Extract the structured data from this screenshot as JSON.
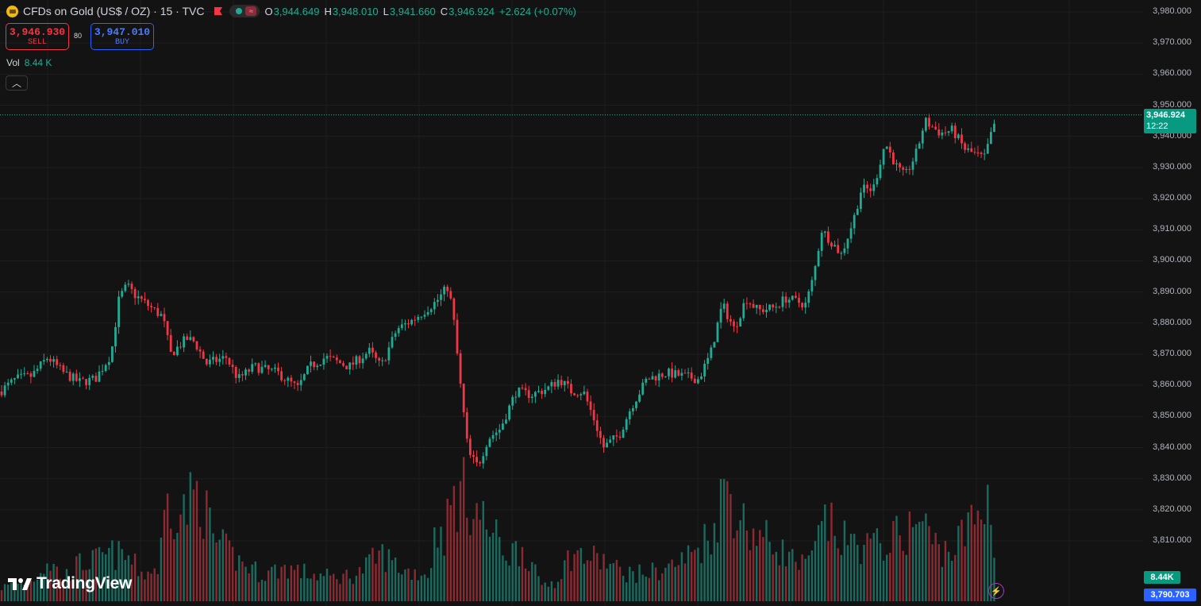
{
  "legend": {
    "symbol_title": "CFDs on Gold (US$ / OZ) · 15 · TVC",
    "open_label": "O",
    "open": "3,944.649",
    "high_label": "H",
    "high": "3,948.010",
    "low_label": "L",
    "low": "3,941.660",
    "close_label": "C",
    "close": "3,946.924",
    "change": "+2.624 (+0.07%)"
  },
  "trade": {
    "sell_price": "3,946.930",
    "sell_label": "SELL",
    "spread": "80",
    "buy_price": "3,947.010",
    "buy_label": "BUY"
  },
  "volume_legend": {
    "label": "Vol",
    "value": "8.44 K"
  },
  "price_axis": {
    "ticks": [
      "3,980.000",
      "3,970.000",
      "3,960.000",
      "3,950.000",
      "3,940.000",
      "3,930.000",
      "3,920.000",
      "3,910.000",
      "3,900.000",
      "3,890.000",
      "3,880.000",
      "3,870.000",
      "3,860.000",
      "3,850.000",
      "3,840.000",
      "3,830.000",
      "3,820.000",
      "3,810.000"
    ]
  },
  "last_price": {
    "price": "3,946.924",
    "countdown": "12:22"
  },
  "volume_tag": "8.44K",
  "axis_bottom_tag": "3,790.703",
  "brand": "TradingView",
  "icons": [
    "gold-symbol-icon",
    "flag-icon",
    "market-open-dot-icon",
    "wave-icon",
    "chevron-up-icon",
    "tradingview-logo-icon",
    "lightning-icon"
  ],
  "colors": {
    "up": "#22ab94",
    "down": "#f23645",
    "background": "#131313",
    "buy": "#2962ff"
  },
  "chart_data": {
    "type": "candlestick",
    "series_name": "CFDs on Gold (US$ / OZ)",
    "interval": "15",
    "ylim": [
      3790,
      3985
    ],
    "grid": true,
    "anchor_path": [
      [
        0,
        3858
      ],
      [
        20,
        3862
      ],
      [
        40,
        3863
      ],
      [
        60,
        3869
      ],
      [
        80,
        3864
      ],
      [
        100,
        3861
      ],
      [
        120,
        3862
      ],
      [
        140,
        3870
      ],
      [
        150,
        3888
      ],
      [
        160,
        3892
      ],
      [
        170,
        3889
      ],
      [
        195,
        3884
      ],
      [
        205,
        3882
      ],
      [
        215,
        3870
      ],
      [
        235,
        3875
      ],
      [
        245,
        3874
      ],
      [
        260,
        3867
      ],
      [
        285,
        3869
      ],
      [
        300,
        3862
      ],
      [
        320,
        3866
      ],
      [
        350,
        3864
      ],
      [
        375,
        3859
      ],
      [
        390,
        3866
      ],
      [
        410,
        3869
      ],
      [
        440,
        3866
      ],
      [
        465,
        3871
      ],
      [
        480,
        3866
      ],
      [
        500,
        3878
      ],
      [
        520,
        3881
      ],
      [
        550,
        3887
      ],
      [
        565,
        3892
      ],
      [
        572,
        3880
      ],
      [
        580,
        3860
      ],
      [
        590,
        3838
      ],
      [
        602,
        3834
      ],
      [
        615,
        3843
      ],
      [
        630,
        3846
      ],
      [
        650,
        3858
      ],
      [
        670,
        3857
      ],
      [
        690,
        3859
      ],
      [
        705,
        3862
      ],
      [
        720,
        3858
      ],
      [
        735,
        3858
      ],
      [
        750,
        3848
      ],
      [
        760,
        3840
      ],
      [
        780,
        3844
      ],
      [
        795,
        3853
      ],
      [
        815,
        3862
      ],
      [
        840,
        3864
      ],
      [
        860,
        3863
      ],
      [
        880,
        3862
      ],
      [
        895,
        3870
      ],
      [
        910,
        3886
      ],
      [
        925,
        3878
      ],
      [
        940,
        3888
      ],
      [
        955,
        3884
      ],
      [
        975,
        3885
      ],
      [
        990,
        3888
      ],
      [
        1015,
        3886
      ],
      [
        1025,
        3895
      ],
      [
        1035,
        3910
      ],
      [
        1048,
        3906
      ],
      [
        1060,
        3902
      ],
      [
        1075,
        3913
      ],
      [
        1085,
        3923
      ],
      [
        1100,
        3923
      ],
      [
        1115,
        3938
      ],
      [
        1130,
        3930
      ],
      [
        1140,
        3927
      ],
      [
        1155,
        3935
      ],
      [
        1165,
        3945
      ],
      [
        1185,
        3941
      ],
      [
        1200,
        3942
      ],
      [
        1215,
        3936
      ],
      [
        1230,
        3934
      ],
      [
        1240,
        3933
      ],
      [
        1248,
        3940
      ],
      [
        1256,
        3946.9
      ]
    ],
    "volume_anchor_path": [
      [
        0,
        20
      ],
      [
        40,
        30
      ],
      [
        60,
        60
      ],
      [
        80,
        35
      ],
      [
        100,
        55
      ],
      [
        120,
        60
      ],
      [
        140,
        70
      ],
      [
        160,
        65
      ],
      [
        180,
        40
      ],
      [
        200,
        50
      ],
      [
        210,
        150
      ],
      [
        230,
        130
      ],
      [
        250,
        165
      ],
      [
        270,
        90
      ],
      [
        300,
        60
      ],
      [
        330,
        40
      ],
      [
        360,
        50
      ],
      [
        390,
        40
      ],
      [
        420,
        35
      ],
      [
        450,
        40
      ],
      [
        480,
        70
      ],
      [
        510,
        45
      ],
      [
        540,
        40
      ],
      [
        550,
        110
      ],
      [
        560,
        100
      ],
      [
        570,
        150
      ],
      [
        585,
        160
      ],
      [
        600,
        135
      ],
      [
        620,
        100
      ],
      [
        640,
        70
      ],
      [
        660,
        80
      ],
      [
        680,
        25
      ],
      [
        700,
        30
      ],
      [
        720,
        70
      ],
      [
        740,
        65
      ],
      [
        760,
        60
      ],
      [
        780,
        45
      ],
      [
        800,
        40
      ],
      [
        830,
        45
      ],
      [
        860,
        60
      ],
      [
        880,
        80
      ],
      [
        900,
        110
      ],
      [
        915,
        180
      ],
      [
        925,
        140
      ],
      [
        940,
        110
      ],
      [
        960,
        95
      ],
      [
        980,
        80
      ],
      [
        1000,
        60
      ],
      [
        1015,
        50
      ],
      [
        1025,
        70
      ],
      [
        1040,
        120
      ],
      [
        1060,
        90
      ],
      [
        1080,
        85
      ],
      [
        1100,
        80
      ],
      [
        1120,
        90
      ],
      [
        1140,
        100
      ],
      [
        1160,
        120
      ],
      [
        1180,
        80
      ],
      [
        1200,
        75
      ],
      [
        1220,
        110
      ],
      [
        1235,
        130
      ],
      [
        1248,
        160
      ],
      [
        1256,
        30
      ]
    ]
  }
}
